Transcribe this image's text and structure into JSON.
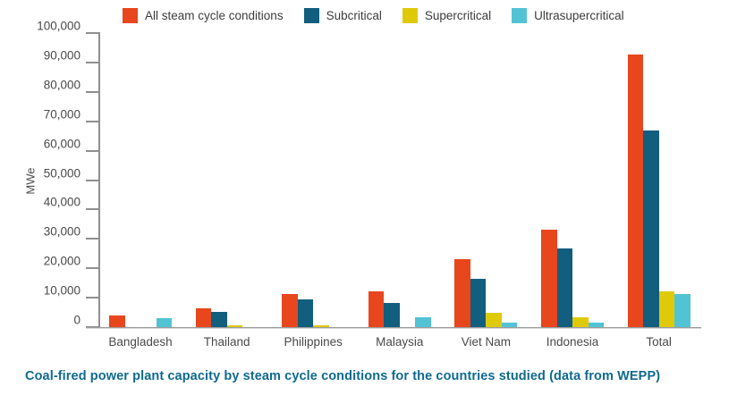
{
  "caption": "Coal-fired power plant capacity by steam cycle conditions for the countries studied (data from WEPP)",
  "colors": {
    "caption_text": "#0f6a90",
    "axis": "#8f8f8f",
    "tick_text": "#4a4a4a"
  },
  "chart_data": {
    "type": "bar",
    "title": "",
    "xlabel": "",
    "ylabel": "MWe",
    "ylim": [
      0,
      100000
    ],
    "ytick_step": 10000,
    "grid": false,
    "legend_position": "top",
    "categories": [
      "Bangladesh",
      "Thailand",
      "Philippines",
      "Malaysia",
      "Viet Nam",
      "Indonesia",
      "Total"
    ],
    "series": [
      {
        "name": "All steam cycle conditions",
        "color": "#e8461d",
        "values": [
          4000,
          6300,
          11100,
          12300,
          23200,
          33200,
          92600
        ]
      },
      {
        "name": "Subcritical",
        "color": "#115e7e",
        "values": [
          0,
          5100,
          9300,
          8100,
          16400,
          26800,
          66900
        ]
      },
      {
        "name": "Supercritical",
        "color": "#dfca0a",
        "values": [
          0,
          700,
          700,
          0,
          5000,
          3200,
          12200
        ]
      },
      {
        "name": "Ultrasupercritical",
        "color": "#52c3d4",
        "values": [
          2900,
          0,
          0,
          3200,
          1600,
          1500,
          11100
        ]
      }
    ]
  }
}
